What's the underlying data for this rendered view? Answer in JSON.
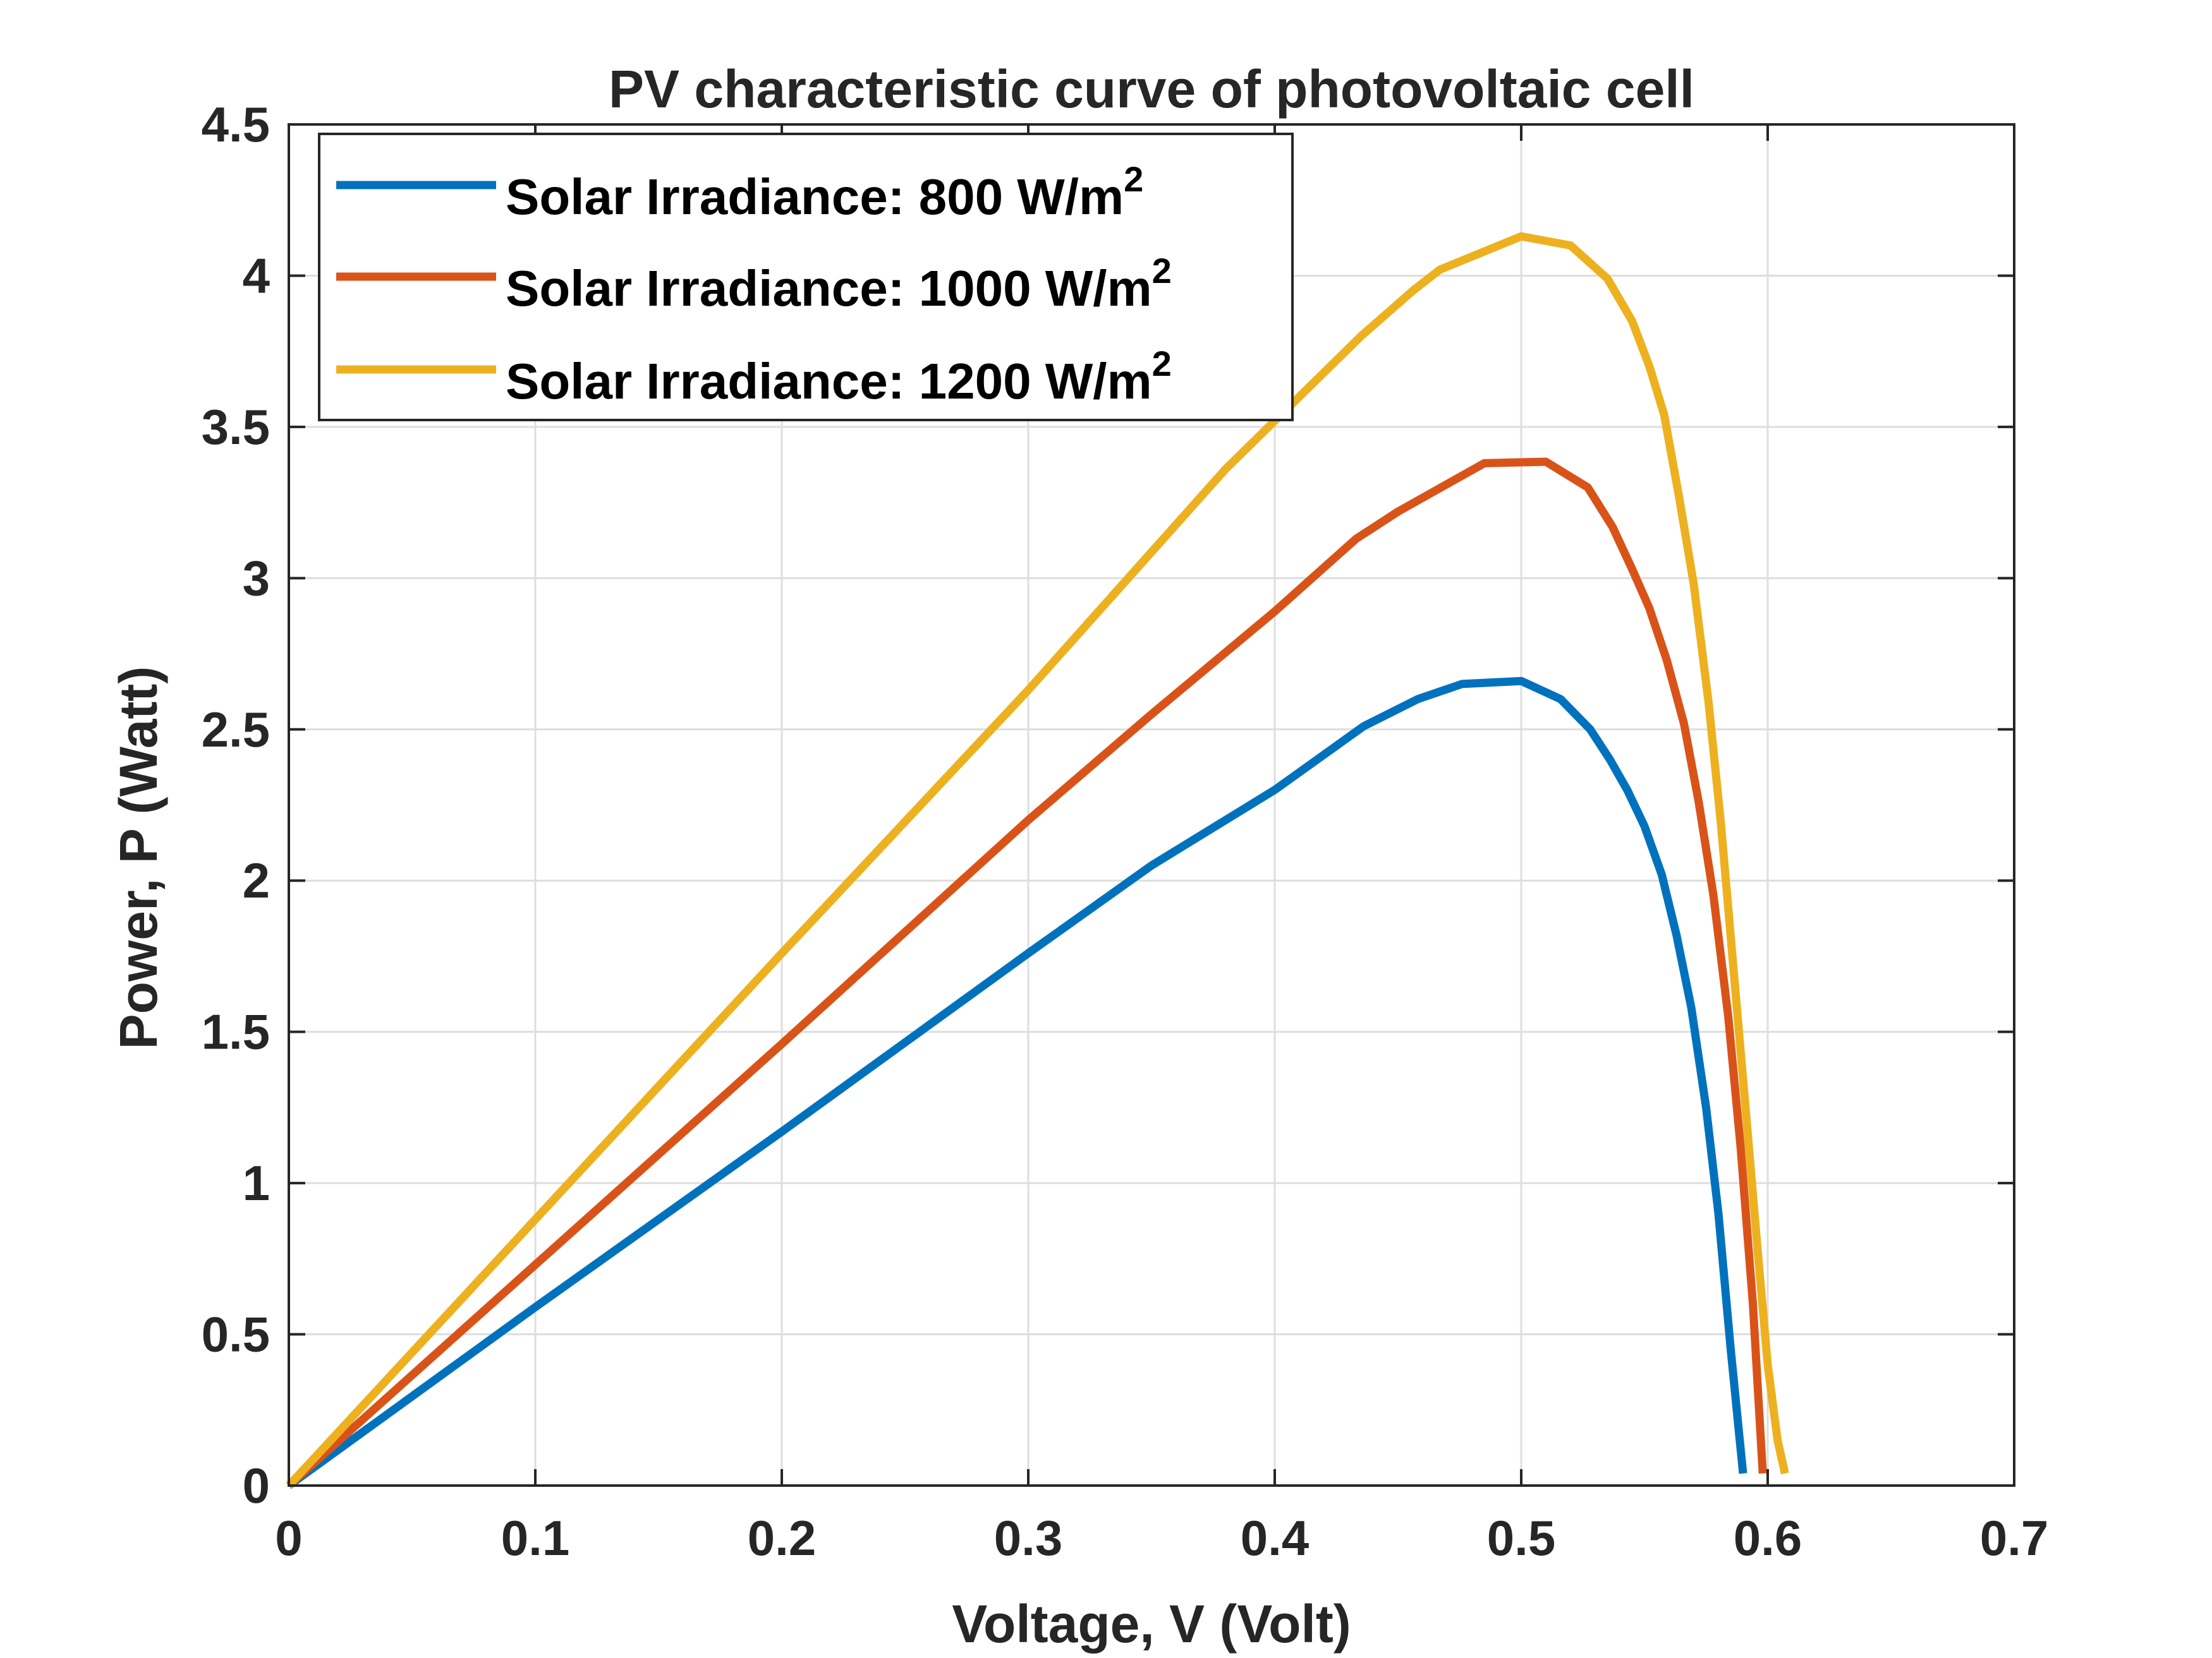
{
  "chart_data": {
    "type": "line",
    "title": "PV characteristic curve of photovoltaic cell",
    "xlabel": "Voltage, V (Volt)",
    "ylabel": "Power, P (Watt)",
    "xlim": [
      0,
      0.7
    ],
    "ylim": [
      0,
      4.5
    ],
    "xticks": [
      "0",
      "0.1",
      "0.2",
      "0.3",
      "0.4",
      "0.5",
      "0.6",
      "0.7"
    ],
    "yticks": [
      "0",
      "0.5",
      "1",
      "1.5",
      "2",
      "2.5",
      "3",
      "3.5",
      "4",
      "4.5"
    ],
    "grid": true,
    "legend_position": "top-left",
    "legend_superscript": "2",
    "series": [
      {
        "name": "Solar Irradiance: 800 W/m",
        "color": "#0072BD",
        "x": [
          0,
          0.1,
          0.2,
          0.3,
          0.35,
          0.4,
          0.436,
          0.458,
          0.476,
          0.5,
          0.516,
          0.528,
          0.536,
          0.543,
          0.55,
          0.557,
          0.563,
          0.569,
          0.575,
          0.58,
          0.585,
          0.59
        ],
        "y": [
          0,
          0.59,
          1.17,
          1.76,
          2.05,
          2.3,
          2.51,
          2.6,
          2.65,
          2.66,
          2.6,
          2.5,
          2.4,
          2.3,
          2.18,
          2.02,
          1.82,
          1.58,
          1.25,
          0.9,
          0.45,
          0.04
        ]
      },
      {
        "name": "Solar Irradiance: 1000 W/m",
        "color": "#D95319",
        "x": [
          0,
          0.1,
          0.2,
          0.3,
          0.35,
          0.4,
          0.433,
          0.45,
          0.485,
          0.51,
          0.527,
          0.537,
          0.545,
          0.552,
          0.559,
          0.566,
          0.572,
          0.578,
          0.584,
          0.589,
          0.594,
          0.598
        ],
        "y": [
          0,
          0.73,
          1.46,
          2.2,
          2.55,
          2.89,
          3.13,
          3.22,
          3.38,
          3.385,
          3.3,
          3.17,
          3.03,
          2.9,
          2.73,
          2.52,
          2.26,
          1.95,
          1.55,
          1.12,
          0.6,
          0.04
        ]
      },
      {
        "name": "Solar Irradiance: 1200 W/m",
        "color": "#EDB120",
        "x": [
          0,
          0.1,
          0.2,
          0.3,
          0.38,
          0.435,
          0.456,
          0.467,
          0.5,
          0.52,
          0.535,
          0.545,
          0.552,
          0.558,
          0.564,
          0.57,
          0.576,
          0.581,
          0.586,
          0.591,
          0.596,
          0.6,
          0.604,
          0.607
        ],
        "y": [
          0,
          0.88,
          1.76,
          2.63,
          3.36,
          3.8,
          3.95,
          4.02,
          4.13,
          4.1,
          3.99,
          3.85,
          3.7,
          3.54,
          3.27,
          2.98,
          2.59,
          2.19,
          1.72,
          1.25,
          0.77,
          0.4,
          0.15,
          0.04
        ]
      }
    ]
  }
}
